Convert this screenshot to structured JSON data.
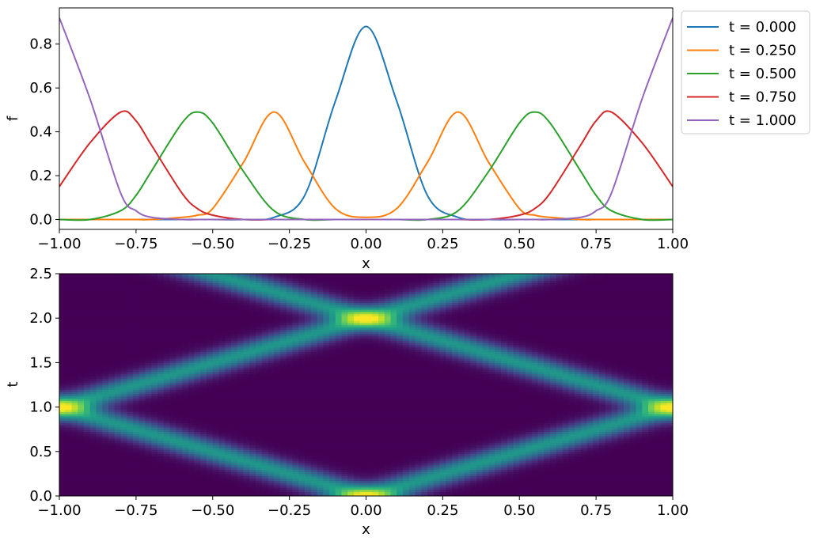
{
  "chart_data": [
    {
      "type": "line",
      "title": "",
      "xlabel": "x",
      "ylabel": "f",
      "xlim": [
        -1.0,
        1.0
      ],
      "ylim": [
        -0.045,
        0.965
      ],
      "x_ticks": [
        -1.0,
        -0.75,
        -0.5,
        -0.25,
        0.0,
        0.25,
        0.5,
        0.75,
        1.0
      ],
      "x_tick_labels": [
        "−1.00",
        "−0.75",
        "−0.50",
        "−0.25",
        "0.00",
        "0.25",
        "0.50",
        "0.75",
        "1.00"
      ],
      "y_ticks": [
        0.0,
        0.2,
        0.4,
        0.6,
        0.8
      ],
      "y_tick_labels": [
        "0.0",
        "0.2",
        "0.4",
        "0.6",
        "0.8"
      ],
      "grid": false,
      "legend": "outside-upper-right",
      "x": [
        -1.0,
        -0.9,
        -0.8,
        -0.75,
        -0.7,
        -0.6,
        -0.55,
        -0.5,
        -0.4,
        -0.3,
        -0.2,
        -0.1,
        0.0,
        0.1,
        0.2,
        0.3,
        0.4,
        0.5,
        0.55,
        0.6,
        0.7,
        0.75,
        0.8,
        0.9,
        1.0
      ],
      "series": [
        {
          "name": "t = 0.000",
          "color": "#1f77b4",
          "values": [
            0.0,
            0.0,
            0.0,
            0.0,
            0.0,
            0.0,
            0.0,
            0.0,
            0.0,
            0.01,
            0.11,
            0.54,
            0.88,
            0.54,
            0.11,
            0.01,
            0.0,
            0.0,
            0.0,
            0.0,
            0.0,
            0.0,
            0.0,
            0.0,
            0.0
          ]
        },
        {
          "name": "t = 0.250",
          "color": "#ff7f0e",
          "values": [
            0.0,
            0.0,
            0.0,
            0.0,
            0.0,
            0.01,
            0.02,
            0.05,
            0.26,
            0.49,
            0.26,
            0.05,
            0.01,
            0.05,
            0.26,
            0.49,
            0.26,
            0.05,
            0.02,
            0.01,
            0.0,
            0.0,
            0.0,
            0.0,
            0.0
          ]
        },
        {
          "name": "t = 0.500",
          "color": "#2ca02c",
          "values": [
            0.0,
            0.0,
            0.04,
            0.11,
            0.22,
            0.44,
            0.49,
            0.44,
            0.22,
            0.04,
            0.0,
            0.0,
            0.0,
            0.0,
            0.0,
            0.04,
            0.22,
            0.44,
            0.49,
            0.44,
            0.22,
            0.11,
            0.04,
            0.0,
            0.0
          ]
        },
        {
          "name": "t = 0.750",
          "color": "#d62728",
          "values": [
            0.15,
            0.35,
            0.49,
            0.45,
            0.34,
            0.12,
            0.05,
            0.02,
            0.0,
            0.0,
            0.0,
            0.0,
            0.0,
            0.0,
            0.0,
            0.0,
            0.0,
            0.02,
            0.05,
            0.12,
            0.34,
            0.45,
            0.49,
            0.35,
            0.15
          ]
        },
        {
          "name": "t = 1.000",
          "color": "#9467bd",
          "values": [
            0.92,
            0.55,
            0.12,
            0.04,
            0.01,
            0.0,
            0.0,
            0.0,
            0.0,
            0.0,
            0.0,
            0.0,
            0.0,
            0.0,
            0.0,
            0.0,
            0.0,
            0.0,
            0.0,
            0.0,
            0.01,
            0.04,
            0.12,
            0.55,
            0.92
          ]
        }
      ]
    },
    {
      "type": "heatmap",
      "title": "",
      "xlabel": "x",
      "ylabel": "t",
      "xlim": [
        -1.0,
        1.0
      ],
      "ylim": [
        0.0,
        2.5
      ],
      "x_ticks": [
        -1.0,
        -0.75,
        -0.5,
        -0.25,
        0.0,
        0.25,
        0.5,
        0.75,
        1.0
      ],
      "x_tick_labels": [
        "−1.00",
        "−0.75",
        "−0.50",
        "−0.25",
        "0.00",
        "0.25",
        "0.50",
        "0.75",
        "1.00"
      ],
      "y_ticks": [
        0.0,
        0.5,
        1.0,
        1.5,
        2.0,
        2.5
      ],
      "y_tick_labels": [
        "0.0",
        "0.5",
        "1.0",
        "1.5",
        "2.0",
        "2.5"
      ],
      "grid": false,
      "colormap": "viridis",
      "value_range": [
        0.0,
        0.88
      ],
      "description_of_field": "f(x,t): two pulses travelling at speed 1 from x=0 at t=0, reflecting at x=±1 (peaks at t=1) and meeting again at x=0 at t=2",
      "wave": {
        "peak": 0.88,
        "split_peak": 0.49,
        "width": 0.092,
        "speed": 1.0,
        "half_period": 2.0
      }
    }
  ]
}
